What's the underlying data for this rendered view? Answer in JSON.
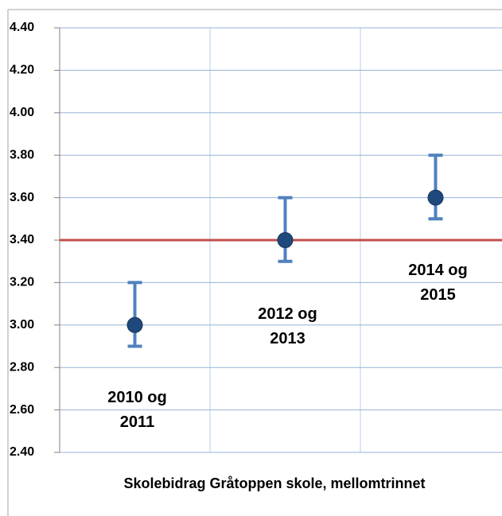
{
  "chart_data": {
    "type": "errorbar",
    "categories": [
      "2010 og 2011",
      "2012 og 2013",
      "2014 og 2015"
    ],
    "values": [
      3.0,
      3.4,
      3.6
    ],
    "errors_minus": [
      0.1,
      0.1,
      0.1
    ],
    "errors_plus": [
      0.2,
      0.2,
      0.2
    ],
    "color": "#1f497d",
    "error_color": "#4f81bd",
    "reference_line": 3.4,
    "reference_color": "#c0504d",
    "x_label": "Skolebidrag Gråtoppen skole, mellomtrinnet",
    "ylim": [
      2.4,
      4.4
    ],
    "yticks": [
      {
        "value": 2.4,
        "label": "2.40"
      },
      {
        "value": 2.6,
        "label": "2.60"
      },
      {
        "value": 2.8,
        "label": "2.80"
      },
      {
        "value": 3.0,
        "label": "3.00"
      },
      {
        "value": 3.2,
        "label": "3.20"
      },
      {
        "value": 3.4,
        "label": "3.40"
      },
      {
        "value": 3.6,
        "label": "3.60"
      },
      {
        "value": 3.8,
        "label": "3.80"
      },
      {
        "value": 4.0,
        "label": "4.00"
      },
      {
        "value": 4.2,
        "label": "4.20"
      },
      {
        "value": 4.4,
        "label": "4.40"
      }
    ],
    "grid": true
  }
}
